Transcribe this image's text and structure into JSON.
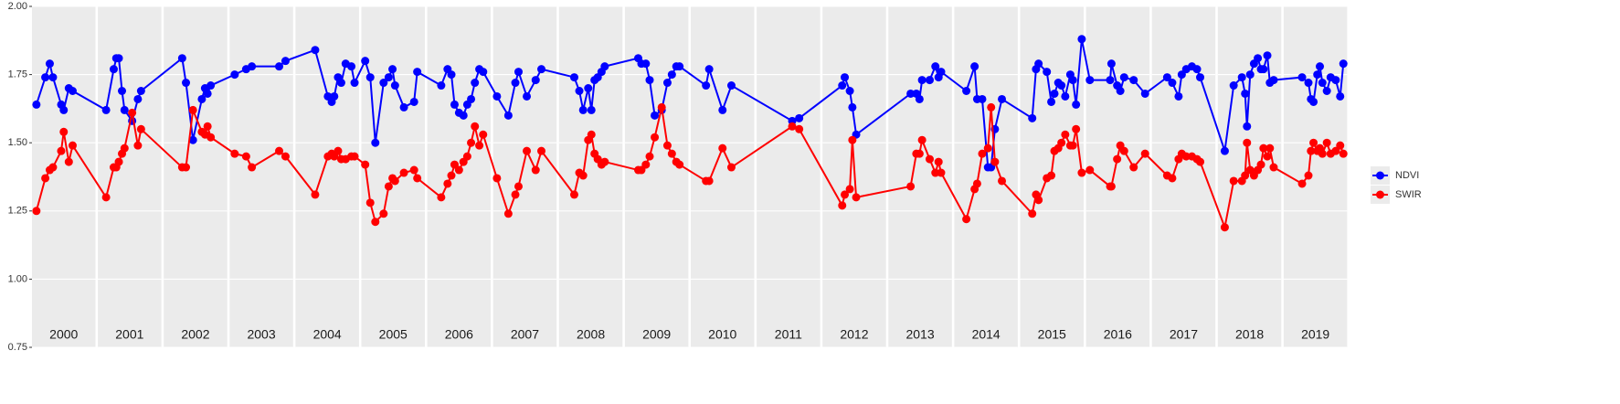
{
  "chart_data": {
    "type": "line",
    "panels": [
      2000,
      2001,
      2002,
      2003,
      2004,
      2005,
      2006,
      2007,
      2008,
      2009,
      2010,
      2011,
      2012,
      2013,
      2014,
      2015,
      2016,
      2017,
      2018,
      2019
    ],
    "x": [
      2000.07,
      2000.21,
      2000.28,
      2000.33,
      2000.46,
      2000.5,
      2000.58,
      2000.64,
      2001.13,
      2001.25,
      2001.29,
      2001.33,
      2001.38,
      2001.42,
      2001.54,
      2001.63,
      2001.68,
      2002.29,
      2002.35,
      2002.46,
      2002.6,
      2002.65,
      2002.69,
      2002.74,
      2003.08,
      2003.26,
      2003.35,
      2003.78,
      2003.88,
      2004.31,
      2004.51,
      2004.57,
      2004.61,
      2004.67,
      2004.72,
      2004.79,
      2004.88,
      2004.93,
      2005.06,
      2005.14,
      2005.22,
      2005.35,
      2005.43,
      2005.49,
      2005.53,
      2005.67,
      2005.83,
      2005.88,
      2006.22,
      2006.32,
      2006.38,
      2006.43,
      2006.5,
      2006.57,
      2006.63,
      2006.69,
      2006.75,
      2006.82,
      2006.88,
      2007.06,
      2007.24,
      2007.35,
      2007.4,
      2007.53,
      2007.67,
      2007.76,
      2008.24,
      2008.32,
      2008.38,
      2008.46,
      2008.51,
      2008.56,
      2008.61,
      2008.67,
      2008.72,
      2009.21,
      2009.26,
      2009.33,
      2009.39,
      2009.47,
      2009.58,
      2009.67,
      2009.74,
      2009.81,
      2009.86,
      2010.24,
      2010.29,
      2010.5,
      2010.64,
      2011.56,
      2011.67,
      2012.31,
      2012.35,
      2012.43,
      2012.47,
      2012.53,
      2013.35,
      2013.44,
      2013.49,
      2013.53,
      2013.65,
      2013.74,
      2013.79,
      2013.83,
      2014.19,
      2014.32,
      2014.36,
      2014.44,
      2014.53,
      2014.58,
      2014.64,
      2014.75,
      2015.19,
      2015.25,
      2015.29,
      2015.42,
      2015.49,
      2015.54,
      2015.6,
      2015.65,
      2015.71,
      2015.79,
      2015.83,
      2015.88,
      2015.97,
      2016.06,
      2016.38,
      2016.4,
      2016.49,
      2016.54,
      2016.6,
      2016.75,
      2016.93,
      2017.24,
      2017.32,
      2017.42,
      2017.47,
      2017.54,
      2017.63,
      2017.71,
      2017.76,
      2018.11,
      2018.25,
      2018.38,
      2018.43,
      2018.46,
      2018.51,
      2018.57,
      2018.63,
      2018.68,
      2018.72,
      2018.78,
      2018.82,
      2018.88,
      2019.29,
      2019.39,
      2019.43,
      2019.47,
      2019.53,
      2019.57,
      2019.61,
      2019.68,
      2019.74,
      2019.82,
      2019.89,
      2019.94
    ],
    "series": [
      {
        "name": "NDVI",
        "color": "#0000ff",
        "values": [
          1.64,
          1.74,
          1.79,
          1.74,
          1.64,
          1.62,
          1.7,
          1.69,
          1.62,
          1.77,
          1.81,
          1.81,
          1.69,
          1.62,
          1.58,
          1.66,
          1.69,
          1.81,
          1.72,
          1.51,
          1.66,
          1.7,
          1.68,
          1.71,
          1.75,
          1.77,
          1.78,
          1.78,
          1.8,
          1.84,
          1.67,
          1.65,
          1.67,
          1.74,
          1.72,
          1.79,
          1.78,
          1.72,
          1.8,
          1.74,
          1.5,
          1.72,
          1.74,
          1.77,
          1.71,
          1.63,
          1.65,
          1.76,
          1.71,
          1.77,
          1.75,
          1.64,
          1.61,
          1.6,
          1.64,
          1.66,
          1.72,
          1.77,
          1.76,
          1.67,
          1.6,
          1.72,
          1.76,
          1.67,
          1.73,
          1.77,
          1.74,
          1.69,
          1.62,
          1.7,
          1.62,
          1.73,
          1.74,
          1.76,
          1.78,
          1.81,
          1.79,
          1.79,
          1.73,
          1.6,
          1.62,
          1.72,
          1.75,
          1.78,
          1.78,
          1.71,
          1.77,
          1.62,
          1.71,
          1.58,
          1.59,
          1.71,
          1.74,
          1.69,
          1.63,
          1.53,
          1.68,
          1.68,
          1.66,
          1.73,
          1.73,
          1.78,
          1.74,
          1.76,
          1.69,
          1.78,
          1.66,
          1.66,
          1.41,
          1.41,
          1.55,
          1.66,
          1.59,
          1.77,
          1.79,
          1.76,
          1.65,
          1.68,
          1.72,
          1.71,
          1.67,
          1.75,
          1.73,
          1.64,
          1.88,
          1.73,
          1.73,
          1.79,
          1.71,
          1.69,
          1.74,
          1.73,
          1.68,
          1.74,
          1.72,
          1.67,
          1.75,
          1.77,
          1.78,
          1.77,
          1.74,
          1.47,
          1.71,
          1.74,
          1.68,
          1.56,
          1.75,
          1.79,
          1.81,
          1.77,
          1.77,
          1.82,
          1.72,
          1.73,
          1.74,
          1.72,
          1.66,
          1.65,
          1.75,
          1.78,
          1.72,
          1.69,
          1.74,
          1.73,
          1.67,
          1.79
        ]
      },
      {
        "name": "SWIR",
        "color": "#ff0000",
        "values": [
          1.25,
          1.37,
          1.4,
          1.41,
          1.47,
          1.54,
          1.43,
          1.49,
          1.3,
          1.41,
          1.41,
          1.43,
          1.46,
          1.48,
          1.61,
          1.49,
          1.55,
          1.41,
          1.41,
          1.62,
          1.54,
          1.53,
          1.56,
          1.52,
          1.46,
          1.45,
          1.41,
          1.47,
          1.45,
          1.31,
          1.45,
          1.46,
          1.45,
          1.47,
          1.44,
          1.44,
          1.45,
          1.45,
          1.42,
          1.28,
          1.21,
          1.24,
          1.34,
          1.37,
          1.36,
          1.39,
          1.4,
          1.37,
          1.3,
          1.35,
          1.38,
          1.42,
          1.4,
          1.43,
          1.45,
          1.5,
          1.56,
          1.49,
          1.53,
          1.37,
          1.24,
          1.31,
          1.34,
          1.47,
          1.4,
          1.47,
          1.31,
          1.39,
          1.38,
          1.51,
          1.53,
          1.46,
          1.44,
          1.42,
          1.43,
          1.4,
          1.4,
          1.42,
          1.45,
          1.52,
          1.63,
          1.49,
          1.46,
          1.43,
          1.42,
          1.36,
          1.36,
          1.48,
          1.41,
          1.56,
          1.55,
          1.27,
          1.31,
          1.33,
          1.51,
          1.3,
          1.34,
          1.46,
          1.46,
          1.51,
          1.44,
          1.39,
          1.43,
          1.39,
          1.22,
          1.33,
          1.35,
          1.46,
          1.48,
          1.63,
          1.43,
          1.36,
          1.24,
          1.31,
          1.29,
          1.37,
          1.38,
          1.47,
          1.48,
          1.5,
          1.53,
          1.49,
          1.49,
          1.55,
          1.39,
          1.4,
          1.34,
          1.34,
          1.44,
          1.49,
          1.47,
          1.41,
          1.46,
          1.38,
          1.37,
          1.44,
          1.46,
          1.45,
          1.45,
          1.44,
          1.43,
          1.19,
          1.36,
          1.36,
          1.38,
          1.5,
          1.4,
          1.38,
          1.4,
          1.42,
          1.48,
          1.45,
          1.48,
          1.41,
          1.35,
          1.38,
          1.47,
          1.5,
          1.47,
          1.48,
          1.46,
          1.5,
          1.46,
          1.47,
          1.49,
          1.46
        ]
      }
    ],
    "ylim": [
      0.75,
      2.0
    ],
    "yticks": [
      {
        "value": 0.75,
        "label": "0.75"
      },
      {
        "value": 1.0,
        "label": "1.00"
      },
      {
        "value": 1.25,
        "label": "1.25"
      },
      {
        "value": 1.5,
        "label": "1.50"
      },
      {
        "value": 1.75,
        "label": "1.75"
      },
      {
        "value": 2.0,
        "label": "2.00"
      }
    ],
    "grid": true,
    "legend": "right"
  }
}
